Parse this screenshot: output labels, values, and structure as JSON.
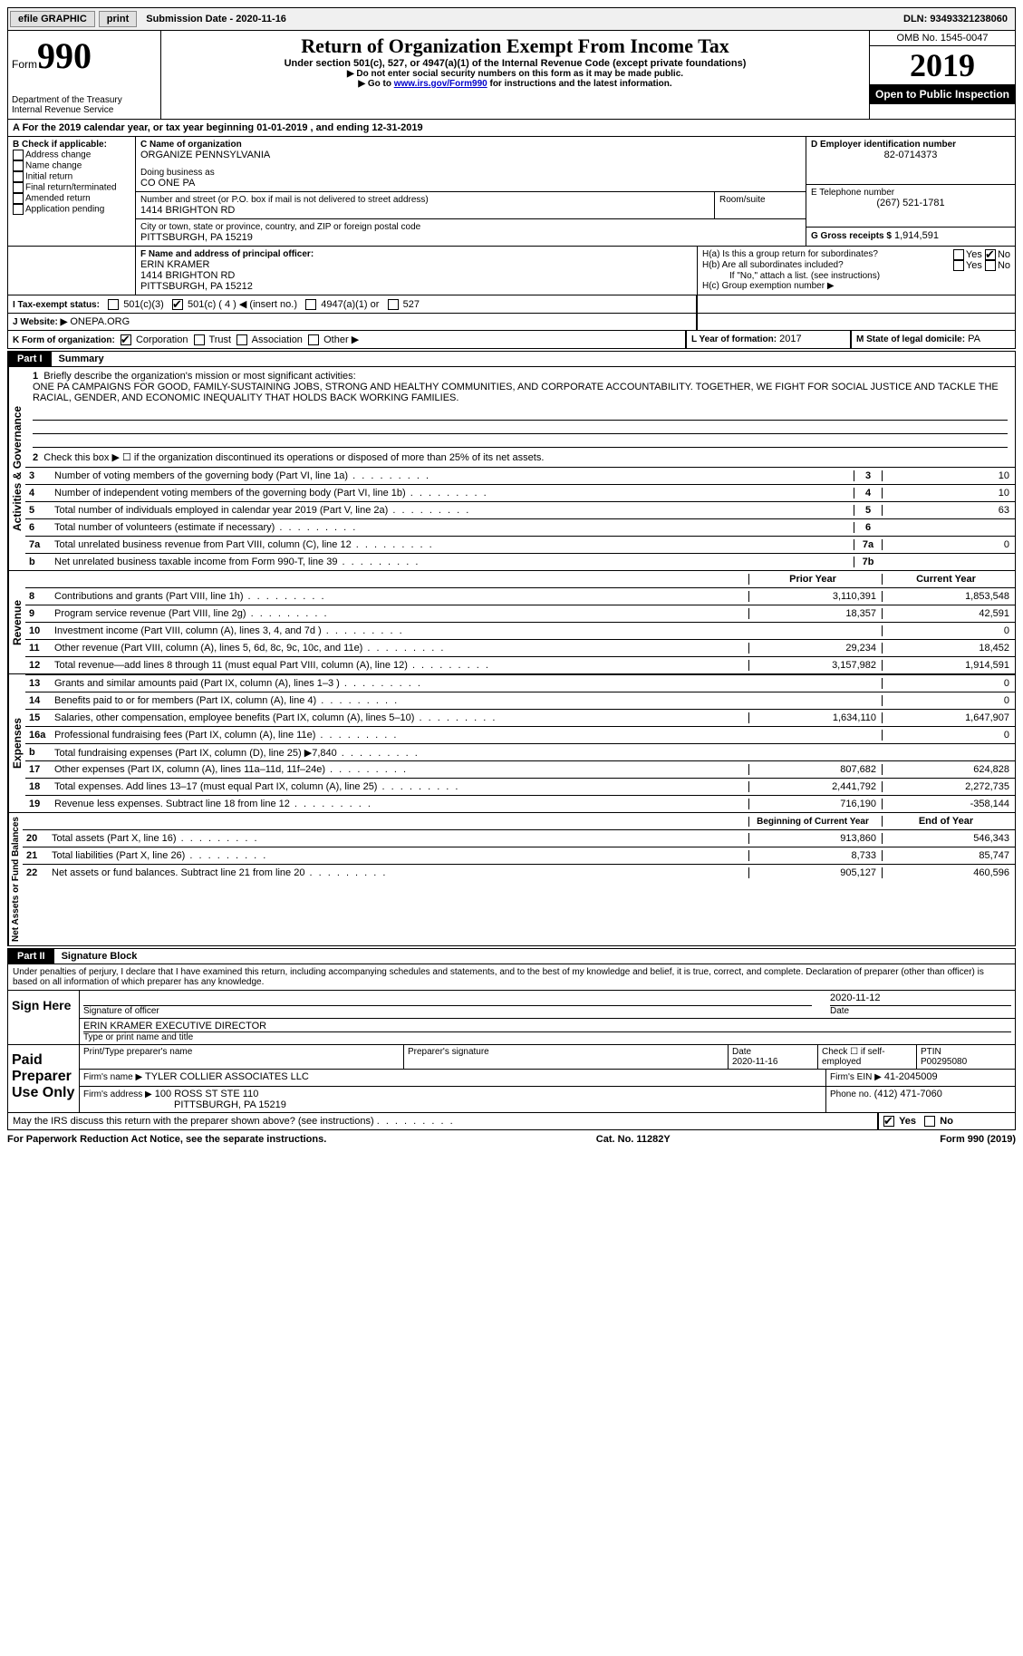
{
  "topbar": {
    "efile": "efile GRAPHIC",
    "print": "print",
    "submission": "Submission Date - 2020-11-16",
    "dln": "DLN: 93493321238060"
  },
  "header": {
    "form_word": "Form",
    "form_num": "990",
    "dept": "Department of the Treasury\nInternal Revenue Service",
    "title": "Return of Organization Exempt From Income Tax",
    "subtitle": "Under section 501(c), 527, or 4947(a)(1) of the Internal Revenue Code (except private foundations)",
    "note1": "▶ Do not enter social security numbers on this form as it may be made public.",
    "note2_pre": "▶ Go to ",
    "note2_link": "www.irs.gov/Form990",
    "note2_post": " for instructions and the latest information.",
    "omb": "OMB No. 1545-0047",
    "year": "2019",
    "open": "Open to Public Inspection"
  },
  "lineA": "A For the 2019 calendar year, or tax year beginning 01-01-2019   , and ending 12-31-2019",
  "B": {
    "label": "B Check if applicable:",
    "items": [
      "Address change",
      "Name change",
      "Initial return",
      "Final return/terminated",
      "Amended return",
      "Application pending"
    ]
  },
  "C": {
    "name_lbl": "C Name of organization",
    "name": "ORGANIZE PENNSYLVANIA",
    "dba_lbl": "Doing business as",
    "dba": "CO ONE PA",
    "addr_lbl": "Number and street (or P.O. box if mail is not delivered to street address)",
    "room_lbl": "Room/suite",
    "addr": "1414 BRIGHTON RD",
    "city_lbl": "City or town, state or province, country, and ZIP or foreign postal code",
    "city": "PITTSBURGH, PA  15219"
  },
  "D": {
    "lbl": "D Employer identification number",
    "val": "82-0714373"
  },
  "E": {
    "lbl": "E Telephone number",
    "val": "(267) 521-1781"
  },
  "G": {
    "lbl": "G Gross receipts $",
    "val": "1,914,591"
  },
  "F": {
    "lbl": "F  Name and address of principal officer:",
    "name": "ERIN KRAMER",
    "addr1": "1414 BRIGHTON RD",
    "addr2": "PITTSBURGH, PA  15212"
  },
  "H": {
    "a": "H(a)  Is this a group return for subordinates?",
    "b": "H(b)  Are all subordinates included?",
    "bnote": "If \"No,\" attach a list. (see instructions)",
    "c": "H(c)  Group exemption number ▶"
  },
  "I": {
    "lbl": "I  Tax-exempt status:",
    "c3": "501(c)(3)",
    "c": "501(c) ( 4 ) ◀ (insert no.)",
    "a1": "4947(a)(1) or",
    "527": "527"
  },
  "J": {
    "lbl": "J  Website: ▶",
    "val": "ONEPA.ORG"
  },
  "K": {
    "lbl": "K Form of organization:",
    "corp": "Corporation",
    "trust": "Trust",
    "assoc": "Association",
    "other": "Other ▶"
  },
  "L": {
    "lbl": "L Year of formation:",
    "val": "2017"
  },
  "M": {
    "lbl": "M State of legal domicile:",
    "val": "PA"
  },
  "part1": {
    "label": "Part I",
    "title": "Summary"
  },
  "summary": {
    "vlabel": "Activities & Governance",
    "l1": "Briefly describe the organization's mission or most significant activities:",
    "mission": "ONE PA CAMPAIGNS FOR GOOD, FAMILY-SUSTAINING JOBS, STRONG AND HEALTHY COMMUNITIES, AND CORPORATE ACCOUNTABILITY. TOGETHER, WE FIGHT FOR SOCIAL JUSTICE AND TACKLE THE RACIAL, GENDER, AND ECONOMIC INEQUALITY THAT HOLDS BACK WORKING FAMILIES.",
    "l2": "Check this box ▶ ☐  if the organization discontinued its operations or disposed of more than 25% of its net assets.",
    "lines_ag": [
      {
        "n": "3",
        "d": "Number of voting members of the governing body (Part VI, line 1a)",
        "box": "3",
        "v": "10"
      },
      {
        "n": "4",
        "d": "Number of independent voting members of the governing body (Part VI, line 1b)",
        "box": "4",
        "v": "10"
      },
      {
        "n": "5",
        "d": "Total number of individuals employed in calendar year 2019 (Part V, line 2a)",
        "box": "5",
        "v": "63"
      },
      {
        "n": "6",
        "d": "Total number of volunteers (estimate if necessary)",
        "box": "6",
        "v": ""
      },
      {
        "n": "7a",
        "d": "Total unrelated business revenue from Part VIII, column (C), line 12",
        "box": "7a",
        "v": "0"
      },
      {
        "n": "b",
        "d": "Net unrelated business taxable income from Form 990-T, line 39",
        "box": "7b",
        "v": ""
      }
    ]
  },
  "rev": {
    "vlabel": "Revenue",
    "hdr_prior": "Prior Year",
    "hdr_curr": "Current Year",
    "rows": [
      {
        "n": "8",
        "d": "Contributions and grants (Part VIII, line 1h)",
        "p": "3,110,391",
        "c": "1,853,548"
      },
      {
        "n": "9",
        "d": "Program service revenue (Part VIII, line 2g)",
        "p": "18,357",
        "c": "42,591"
      },
      {
        "n": "10",
        "d": "Investment income (Part VIII, column (A), lines 3, 4, and 7d )",
        "p": "",
        "c": "0"
      },
      {
        "n": "11",
        "d": "Other revenue (Part VIII, column (A), lines 5, 6d, 8c, 9c, 10c, and 11e)",
        "p": "29,234",
        "c": "18,452"
      },
      {
        "n": "12",
        "d": "Total revenue—add lines 8 through 11 (must equal Part VIII, column (A), line 12)",
        "p": "3,157,982",
        "c": "1,914,591"
      }
    ]
  },
  "exp": {
    "vlabel": "Expenses",
    "rows": [
      {
        "n": "13",
        "d": "Grants and similar amounts paid (Part IX, column (A), lines 1–3 )",
        "p": "",
        "c": "0"
      },
      {
        "n": "14",
        "d": "Benefits paid to or for members (Part IX, column (A), line 4)",
        "p": "",
        "c": "0"
      },
      {
        "n": "15",
        "d": "Salaries, other compensation, employee benefits (Part IX, column (A), lines 5–10)",
        "p": "1,634,110",
        "c": "1,647,907"
      },
      {
        "n": "16a",
        "d": "Professional fundraising fees (Part IX, column (A), line 11e)",
        "p": "",
        "c": "0"
      },
      {
        "n": "b",
        "d": "Total fundraising expenses (Part IX, column (D), line 25) ▶7,840",
        "p": "grey",
        "c": "grey"
      },
      {
        "n": "17",
        "d": "Other expenses (Part IX, column (A), lines 11a–11d, 11f–24e)",
        "p": "807,682",
        "c": "624,828"
      },
      {
        "n": "18",
        "d": "Total expenses. Add lines 13–17 (must equal Part IX, column (A), line 25)",
        "p": "2,441,792",
        "c": "2,272,735"
      },
      {
        "n": "19",
        "d": "Revenue less expenses. Subtract line 18 from line 12",
        "p": "716,190",
        "c": "-358,144"
      }
    ]
  },
  "na": {
    "vlabel": "Net Assets or Fund Balances",
    "hdr_prior": "Beginning of Current Year",
    "hdr_curr": "End of Year",
    "rows": [
      {
        "n": "20",
        "d": "Total assets (Part X, line 16)",
        "p": "913,860",
        "c": "546,343"
      },
      {
        "n": "21",
        "d": "Total liabilities (Part X, line 26)",
        "p": "8,733",
        "c": "85,747"
      },
      {
        "n": "22",
        "d": "Net assets or fund balances. Subtract line 21 from line 20",
        "p": "905,127",
        "c": "460,596"
      }
    ]
  },
  "part2": {
    "label": "Part II",
    "title": "Signature Block"
  },
  "sig": {
    "decl": "Under penalties of perjury, I declare that I have examined this return, including accompanying schedules and statements, and to the best of my knowledge and belief, it is true, correct, and complete. Declaration of preparer (other than officer) is based on all information of which preparer has any knowledge.",
    "sign_here": "Sign Here",
    "sig_officer": "Signature of officer",
    "date_lbl": "Date",
    "sig_date": "2020-11-12",
    "name_title": "ERIN KRAMER  EXECUTIVE DIRECTOR",
    "type_name": "Type or print name and title",
    "paid": "Paid Preparer Use Only",
    "prep_name_lbl": "Print/Type preparer's name",
    "prep_sig_lbl": "Preparer's signature",
    "prep_date_lbl": "Date",
    "prep_date": "2020-11-16",
    "self_emp": "Check ☐ if self-employed",
    "ptin_lbl": "PTIN",
    "ptin": "P00295080",
    "firm_name_lbl": "Firm's name   ▶",
    "firm_name": "TYLER COLLIER ASSOCIATES LLC",
    "firm_ein_lbl": "Firm's EIN ▶",
    "firm_ein": "41-2045009",
    "firm_addr_lbl": "Firm's address ▶",
    "firm_addr": "100 ROSS ST STE 110",
    "firm_city": "PITTSBURGH, PA  15219",
    "phone_lbl": "Phone no.",
    "phone": "(412) 471-7060",
    "discuss": "May the IRS discuss this return with the preparer shown above? (see instructions)",
    "yes": "Yes",
    "no": "No"
  },
  "footer": {
    "left": "For Paperwork Reduction Act Notice, see the separate instructions.",
    "mid": "Cat. No. 11282Y",
    "right": "Form 990 (2019)"
  }
}
